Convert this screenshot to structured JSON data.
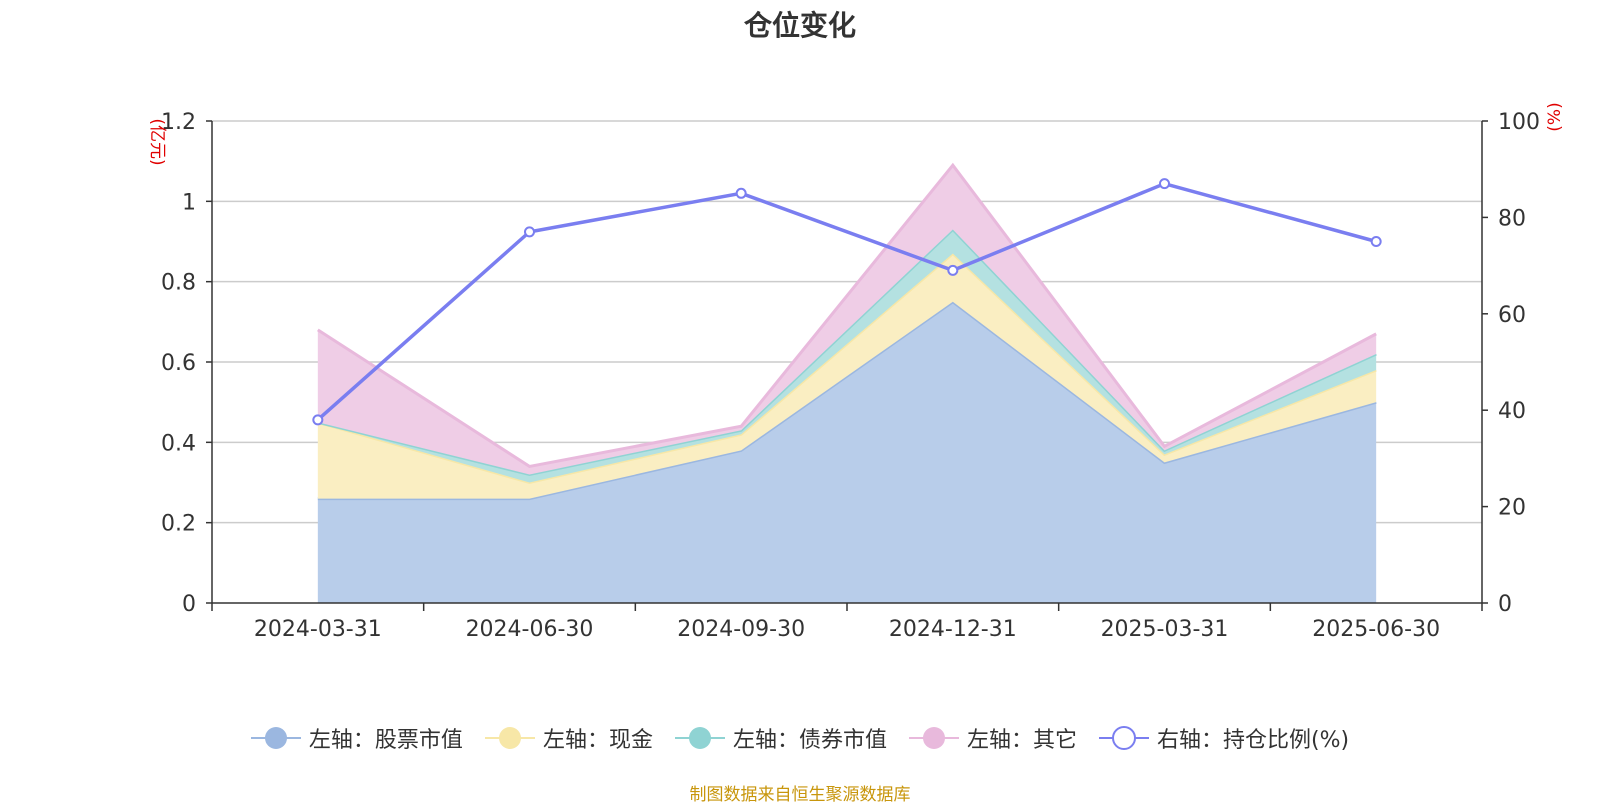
{
  "chart_data": {
    "type": "area",
    "title": "仓位变化",
    "categories": [
      "2024-03-31",
      "2024-06-30",
      "2024-09-30",
      "2024-12-31",
      "2025-03-31",
      "2025-06-30"
    ],
    "left_axis": {
      "unit": "(亿元)",
      "min": 0,
      "max": 1.2,
      "ticks": [
        0,
        0.2,
        0.4,
        0.6,
        0.8,
        1,
        1.2
      ],
      "tick_labels": [
        "0",
        "0.2",
        "0.4",
        "0.6",
        "0.8",
        "1",
        "1.2"
      ]
    },
    "right_axis": {
      "unit": "(%)",
      "min": 0,
      "max": 100,
      "ticks": [
        0,
        20,
        40,
        60,
        80,
        100
      ],
      "tick_labels": [
        "0",
        "20",
        "40",
        "60",
        "80",
        "100"
      ]
    },
    "grid": true,
    "stacked": true,
    "series": [
      {
        "name": "左轴：股票市值",
        "axis": "left",
        "type": "area",
        "color": "#9bb7e0",
        "fill": "#b8cdea",
        "values": [
          0.26,
          0.26,
          0.38,
          0.75,
          0.35,
          0.5
        ]
      },
      {
        "name": "左轴：现金",
        "axis": "left",
        "type": "area",
        "color": "#f7e7a7",
        "fill": "#faeec2",
        "values": [
          0.19,
          0.04,
          0.04,
          0.12,
          0.02,
          0.08
        ]
      },
      {
        "name": "左轴：债券市值",
        "axis": "left",
        "type": "area",
        "color": "#8fd3d3",
        "fill": "#b4e1e1",
        "values": [
          0.0,
          0.02,
          0.01,
          0.06,
          0.01,
          0.04
        ]
      },
      {
        "name": "左轴：其它",
        "axis": "left",
        "type": "area",
        "color": "#e8b9dc",
        "fill": "#efcde6",
        "values": [
          0.23,
          0.02,
          0.01,
          0.16,
          0.01,
          0.05
        ]
      },
      {
        "name": "右轴：持仓比例(%)",
        "axis": "right",
        "type": "line",
        "color": "#7a7ef0",
        "values": [
          38,
          77,
          85,
          69,
          87,
          75
        ]
      }
    ],
    "legend_position": "bottom"
  },
  "source_note": "制图数据来自恒生聚源数据库"
}
